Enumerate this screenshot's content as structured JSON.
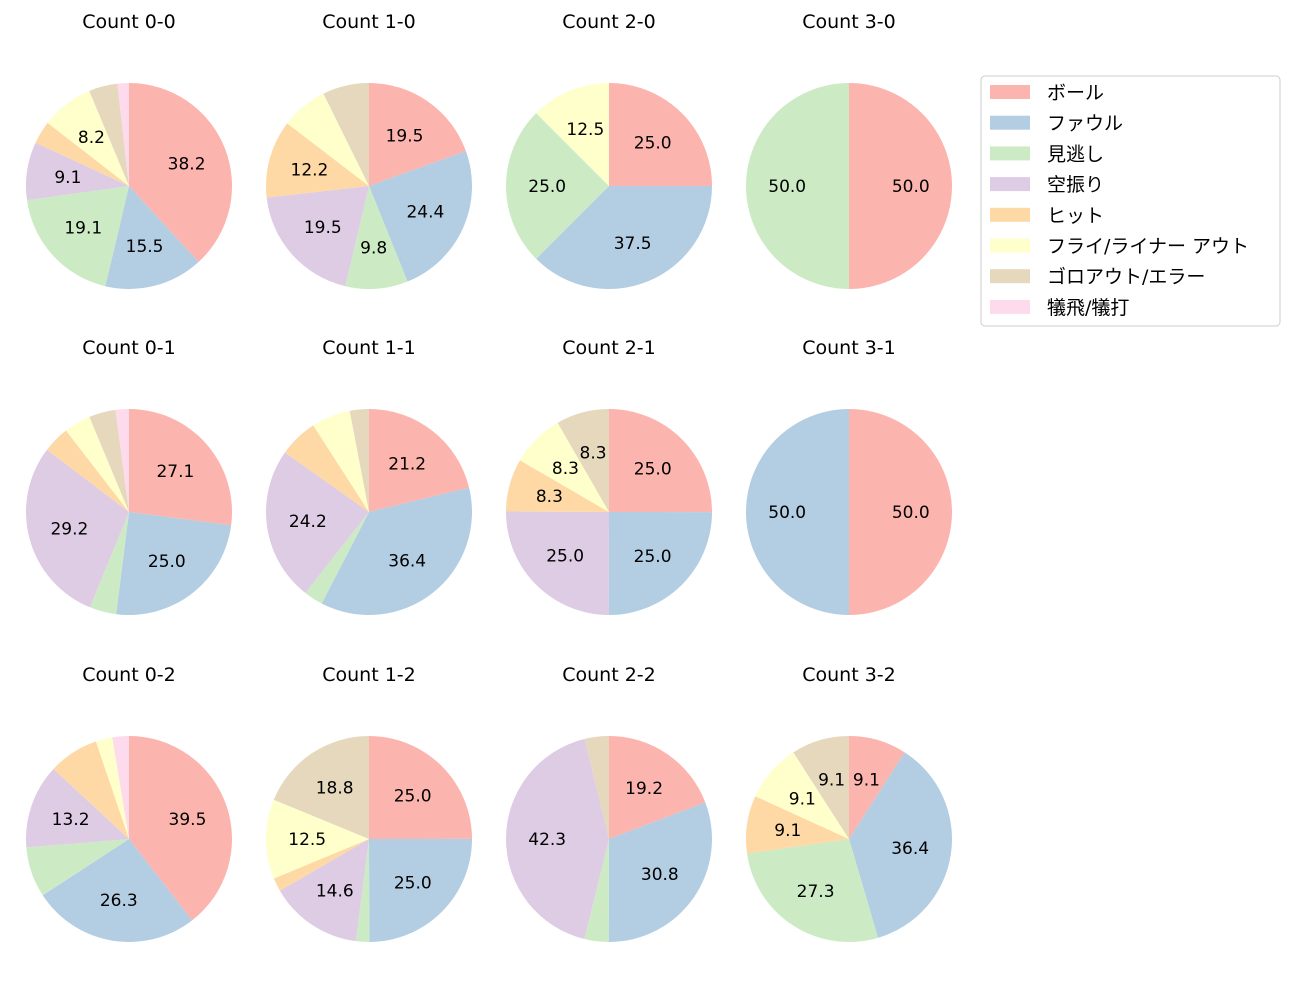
{
  "colors": {
    "ball": "#fbb4ae",
    "foul": "#b3cde3",
    "called_strike": "#ccebc5",
    "swinging_strike": "#decbe4",
    "hit": "#fed9a6",
    "fly_liner_out": "#ffffcc",
    "ground_out_error": "#e5d8bd",
    "sacrifice": "#fddaec"
  },
  "legend": {
    "items": [
      {
        "key": "ball",
        "label": "ボール"
      },
      {
        "key": "foul",
        "label": "ファウル"
      },
      {
        "key": "called_strike",
        "label": "見逃し"
      },
      {
        "key": "swinging_strike",
        "label": "空振り"
      },
      {
        "key": "hit",
        "label": "ヒット"
      },
      {
        "key": "fly_liner_out",
        "label": "フライ/ライナー アウト"
      },
      {
        "key": "ground_out_error",
        "label": "ゴロアウト/エラー"
      },
      {
        "key": "sacrifice",
        "label": "犠飛/犠打"
      }
    ]
  },
  "chart_data": [
    {
      "type": "pie",
      "title": "Count 0-0",
      "categories": [
        "ball",
        "foul",
        "called_strike",
        "swinging_strike",
        "hit",
        "fly_liner_out",
        "ground_out_error",
        "sacrifice"
      ],
      "values": [
        38.2,
        15.5,
        19.1,
        9.1,
        3.6,
        8.2,
        4.5,
        1.8
      ]
    },
    {
      "type": "pie",
      "title": "Count 1-0",
      "categories": [
        "ball",
        "foul",
        "called_strike",
        "swinging_strike",
        "hit",
        "fly_liner_out",
        "ground_out_error",
        "sacrifice"
      ],
      "values": [
        19.5,
        24.4,
        9.8,
        19.5,
        12.2,
        7.3,
        7.3,
        0
      ]
    },
    {
      "type": "pie",
      "title": "Count 2-0",
      "categories": [
        "ball",
        "foul",
        "called_strike",
        "swinging_strike",
        "hit",
        "fly_liner_out",
        "ground_out_error",
        "sacrifice"
      ],
      "values": [
        25.0,
        37.5,
        25.0,
        0,
        0,
        12.5,
        0,
        0
      ]
    },
    {
      "type": "pie",
      "title": "Count 3-0",
      "categories": [
        "ball",
        "foul",
        "called_strike",
        "swinging_strike",
        "hit",
        "fly_liner_out",
        "ground_out_error",
        "sacrifice"
      ],
      "values": [
        50.0,
        0,
        50.0,
        0,
        0,
        0,
        0,
        0
      ]
    },
    {
      "type": "pie",
      "title": "Count 0-1",
      "categories": [
        "ball",
        "foul",
        "called_strike",
        "swinging_strike",
        "hit",
        "fly_liner_out",
        "ground_out_error",
        "sacrifice"
      ],
      "values": [
        27.1,
        25.0,
        4.2,
        29.2,
        4.2,
        4.2,
        4.2,
        2.1
      ]
    },
    {
      "type": "pie",
      "title": "Count 1-1",
      "categories": [
        "ball",
        "foul",
        "called_strike",
        "swinging_strike",
        "hit",
        "fly_liner_out",
        "ground_out_error",
        "sacrifice"
      ],
      "values": [
        21.2,
        36.4,
        3.0,
        24.2,
        6.1,
        6.1,
        3.0,
        0
      ]
    },
    {
      "type": "pie",
      "title": "Count 2-1",
      "categories": [
        "ball",
        "foul",
        "called_strike",
        "swinging_strike",
        "hit",
        "fly_liner_out",
        "ground_out_error",
        "sacrifice"
      ],
      "values": [
        25.0,
        25.0,
        0,
        25.0,
        8.3,
        8.3,
        8.3,
        0
      ]
    },
    {
      "type": "pie",
      "title": "Count 3-1",
      "categories": [
        "ball",
        "foul",
        "called_strike",
        "swinging_strike",
        "hit",
        "fly_liner_out",
        "ground_out_error",
        "sacrifice"
      ],
      "values": [
        50.0,
        50.0,
        0,
        0,
        0,
        0,
        0,
        0
      ]
    },
    {
      "type": "pie",
      "title": "Count 0-2",
      "categories": [
        "ball",
        "foul",
        "called_strike",
        "swinging_strike",
        "hit",
        "fly_liner_out",
        "ground_out_error",
        "sacrifice"
      ],
      "values": [
        39.5,
        26.3,
        7.9,
        13.2,
        7.9,
        2.6,
        0,
        2.6
      ]
    },
    {
      "type": "pie",
      "title": "Count 1-2",
      "categories": [
        "ball",
        "foul",
        "called_strike",
        "swinging_strike",
        "hit",
        "fly_liner_out",
        "ground_out_error",
        "sacrifice"
      ],
      "values": [
        25.0,
        25.0,
        2.1,
        14.6,
        2.1,
        12.5,
        18.8,
        0
      ]
    },
    {
      "type": "pie",
      "title": "Count 2-2",
      "categories": [
        "ball",
        "foul",
        "called_strike",
        "swinging_strike",
        "hit",
        "fly_liner_out",
        "ground_out_error",
        "sacrifice"
      ],
      "values": [
        19.2,
        30.8,
        3.8,
        42.3,
        0,
        0,
        3.8,
        0
      ]
    },
    {
      "type": "pie",
      "title": "Count 3-2",
      "categories": [
        "ball",
        "foul",
        "called_strike",
        "swinging_strike",
        "hit",
        "fly_liner_out",
        "ground_out_error",
        "sacrifice"
      ],
      "values": [
        9.1,
        36.4,
        27.3,
        0,
        9.1,
        9.1,
        9.1,
        0
      ]
    }
  ]
}
